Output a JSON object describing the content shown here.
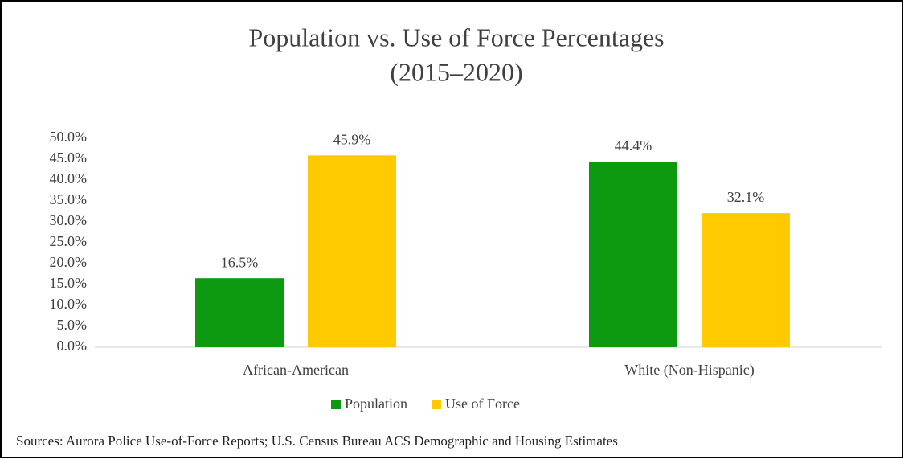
{
  "chart_data": {
    "type": "bar",
    "title": "Population vs. Use of Force Percentages",
    "subtitle": "(2015–2020)",
    "categories": [
      "African-American",
      "White (Non-Hispanic)"
    ],
    "series": [
      {
        "name": "Population",
        "color": "#0d9a10",
        "values": [
          16.5,
          44.4
        ],
        "value_labels": [
          "16.5%",
          "44.4%"
        ]
      },
      {
        "name": "Use of Force",
        "color": "#ffcb00",
        "values": [
          45.9,
          32.1
        ],
        "value_labels": [
          "45.9%",
          "32.1%"
        ]
      }
    ],
    "ylim": [
      0,
      50
    ],
    "yticks": [
      {
        "value": 0,
        "label": "0.0%"
      },
      {
        "value": 5,
        "label": "5.0%"
      },
      {
        "value": 10,
        "label": "10.0%"
      },
      {
        "value": 15,
        "label": "15.0%"
      },
      {
        "value": 20,
        "label": "20.0%"
      },
      {
        "value": 25,
        "label": "25.0%"
      },
      {
        "value": 30,
        "label": "30.0%"
      },
      {
        "value": 35,
        "label": "35.0%"
      },
      {
        "value": 40,
        "label": "40.0%"
      },
      {
        "value": 45,
        "label": "45.0%"
      },
      {
        "value": 50,
        "label": "50.0%"
      }
    ],
    "grid": false,
    "legend": "bottom",
    "note": "Sources: Aurora Police Use-of-Force Reports; U.S. Census Bureau ACS Demographic and Housing Estimates"
  }
}
